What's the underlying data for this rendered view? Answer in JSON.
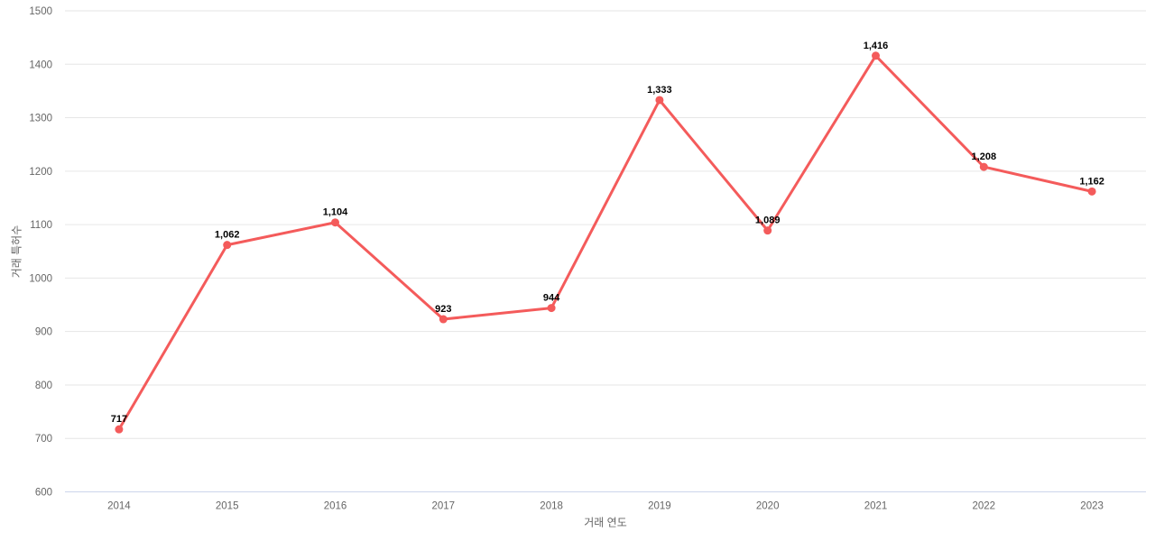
{
  "chart_data": {
    "type": "line",
    "title": "",
    "xlabel": "거래 연도",
    "ylabel": "거래 특허수",
    "categories": [
      "2014",
      "2015",
      "2016",
      "2017",
      "2018",
      "2019",
      "2020",
      "2021",
      "2022",
      "2023"
    ],
    "series": [
      {
        "name": "거래 특허수",
        "values": [
          717,
          1062,
          1104,
          923,
          944,
          1333,
          1089,
          1416,
          1208,
          1162
        ],
        "data_labels": [
          "717",
          "1,062",
          "1,104",
          "923",
          "944",
          "1,333",
          "1,089",
          "1,416",
          "1,208",
          "1,162"
        ]
      }
    ],
    "ylim": [
      600,
      1500
    ],
    "ytick_step": 100,
    "yticks": [
      "600",
      "700",
      "800",
      "900",
      "1000",
      "1100",
      "1200",
      "1300",
      "1400",
      "1500"
    ],
    "grid": true,
    "legend_position": "none",
    "colors": {
      "series": "#f45b5b",
      "grid": "#e6e6e6",
      "axis_line": "#ccd6eb",
      "tick_label": "#666666",
      "axis_title": "#666666",
      "data_label": "#000000",
      "background": "#ffffff"
    }
  }
}
